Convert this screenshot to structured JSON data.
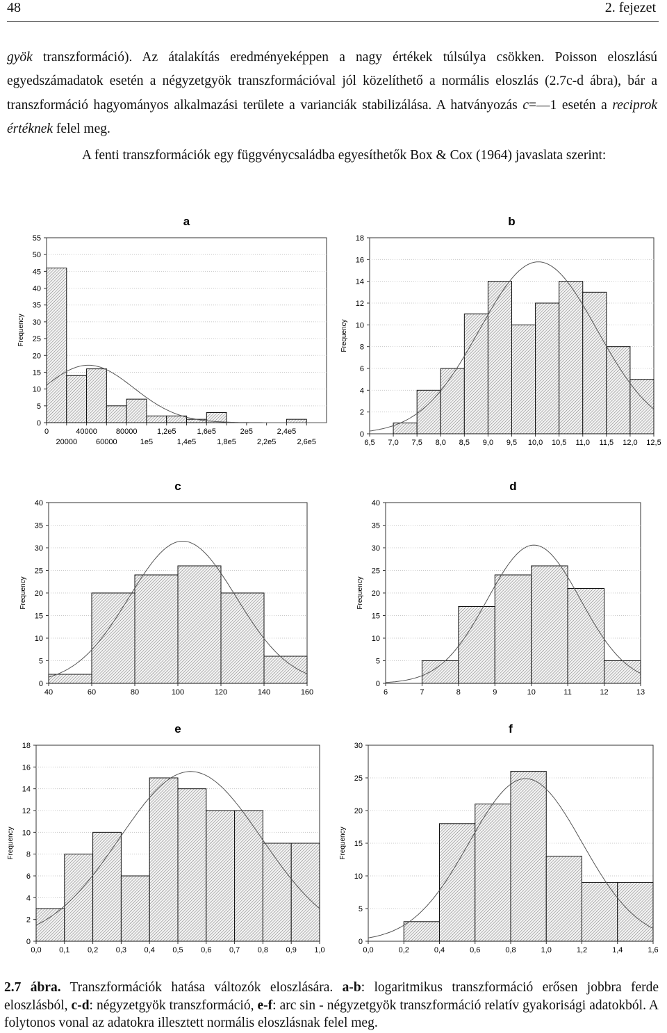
{
  "header": {
    "page_number": "48",
    "chapter": "2. fejezet"
  },
  "paragraph1": {
    "s1": "gyök",
    "s2": " transzformáció). Az átalakítás eredményeképpen a nagy értékek túlsúlya csökken. Poisson eloszlású egyedszámadatok esetén a négyzetgyök transzformációval jól közelíthető a normális eloszlás (2.7c-d ábra), bár a transzformáció hagyományos alkalmazási területe a varianciák stabilizálása. A hatványozás ",
    "s3": "c",
    "s4": "=—1 esetén a ",
    "s5": "reciprok értéknek",
    "s6": " felel meg."
  },
  "paragraph2": "A fenti transzformációk egy függvénycsaládba egyesíthetők Box & Cox (1964) javaslata szerint:",
  "chart_data": [
    {
      "type": "bar",
      "title": "a",
      "ylabel": "Frequency",
      "ylim": [
        0,
        55
      ],
      "yticks": [
        0,
        5,
        10,
        15,
        20,
        25,
        30,
        35,
        40,
        45,
        50,
        55
      ],
      "x_tick_labels_top": [
        "0",
        "40000",
        "80000",
        "1,2e5",
        "1,6e5",
        "2e5",
        "2,4e5"
      ],
      "x_tick_labels_bottom": [
        "20000",
        "60000",
        "1e5",
        "1,4e5",
        "1,8e5",
        "2,2e5",
        "2,6e5"
      ],
      "values": [
        46,
        14,
        16,
        5,
        7,
        2,
        2,
        1,
        3,
        0,
        0,
        0,
        1,
        0
      ],
      "normal_fit": true
    },
    {
      "type": "bar",
      "title": "b",
      "ylabel": "Frequency",
      "ylim": [
        0,
        18
      ],
      "yticks": [
        0,
        2,
        4,
        6,
        8,
        10,
        12,
        14,
        16,
        18
      ],
      "x_tick_labels": [
        "6,5",
        "7,0",
        "7,5",
        "8,0",
        "8,5",
        "9,0",
        "9,5",
        "10,0",
        "10,5",
        "11,0",
        "11,5",
        "12,0",
        "12,5"
      ],
      "values": [
        0,
        1,
        4,
        6,
        11,
        14,
        10,
        12,
        14,
        13,
        8,
        5
      ],
      "normal_fit": true
    },
    {
      "type": "bar",
      "title": "c",
      "ylabel": "Frequency",
      "ylim": [
        0,
        40
      ],
      "yticks": [
        0,
        5,
        10,
        15,
        20,
        25,
        30,
        35,
        40
      ],
      "x_tick_labels": [
        "40",
        "60",
        "80",
        "100",
        "120",
        "140",
        "160"
      ],
      "values": [
        2,
        20,
        24,
        26,
        20,
        6
      ],
      "normal_fit": true
    },
    {
      "type": "bar",
      "title": "d",
      "ylabel": "Frequency",
      "ylim": [
        0,
        40
      ],
      "yticks": [
        0,
        5,
        10,
        15,
        20,
        25,
        30,
        35,
        40
      ],
      "x_tick_labels": [
        "6",
        "7",
        "8",
        "9",
        "10",
        "11",
        "12",
        "13"
      ],
      "values": [
        0,
        5,
        17,
        24,
        26,
        21,
        5
      ],
      "normal_fit": true
    },
    {
      "type": "bar",
      "title": "e",
      "ylabel": "Frequency",
      "ylim": [
        0,
        18
      ],
      "yticks": [
        0,
        2,
        4,
        6,
        8,
        10,
        12,
        14,
        16,
        18
      ],
      "x_tick_labels": [
        "0,0",
        "0,1",
        "0,2",
        "0,3",
        "0,4",
        "0,5",
        "0,6",
        "0,7",
        "0,8",
        "0,9",
        "1,0"
      ],
      "values": [
        3,
        8,
        10,
        6,
        15,
        14,
        12,
        12,
        9,
        9
      ],
      "normal_fit": true
    },
    {
      "type": "bar",
      "title": "f",
      "ylabel": "Frequency",
      "ylim": [
        0,
        30
      ],
      "yticks": [
        0,
        5,
        10,
        15,
        20,
        25,
        30
      ],
      "x_tick_labels": [
        "0,0",
        "0,2",
        "0,4",
        "0,6",
        "0,8",
        "1,0",
        "1,2",
        "1,4",
        "1,6"
      ],
      "values": [
        0,
        3,
        18,
        21,
        26,
        13,
        9,
        9
      ],
      "normal_fit": true
    }
  ],
  "caption": {
    "label": "2.7 ábra.",
    "t1": " Transzformációk  hatása változók eloszlására. ",
    "k1": "a-b",
    "t2": ": logaritmikus transzformáció erősen jobbra ferde eloszlásból, ",
    "k2": "c-d",
    "t3": ": négyzetgyök transzformáció, ",
    "k3": "e-f",
    "t4": ": arc sin - négyzetgyök transzformáció relatív gyakorisági adatokból. A folytonos vonal az adatokra illesztett normális eloszlásnak felel meg."
  }
}
